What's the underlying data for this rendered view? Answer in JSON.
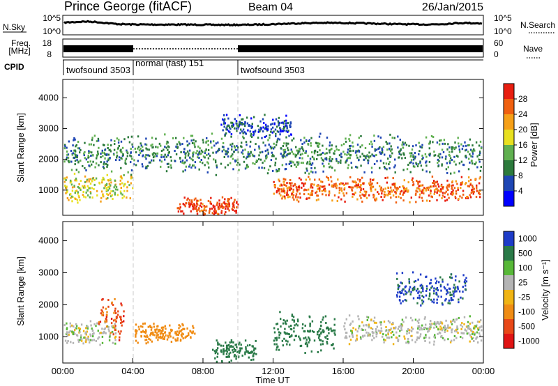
{
  "header": {
    "station": "Prince George (fitACF)",
    "beam": "Beam 04",
    "date": "26/Jan/2015"
  },
  "strip_labels": {
    "nsky": "N.Sky",
    "freq_line1": "Freq.",
    "freq_line2": "[MHz]",
    "cpid": "CPID",
    "nsearch": "N.Search",
    "nave": "Nave"
  },
  "strip_ticks": {
    "nsky_left_top": "10^5",
    "nsky_left_bottom": "10^0",
    "nsky_right_top": "10^5",
    "nsky_right_bottom": "10^0",
    "freq_top": "18",
    "freq_bottom": "8",
    "nave_top": "60",
    "nave_bottom": "0"
  },
  "cpid_segments": [
    {
      "label": "twofsound 3503",
      "start": "00:00",
      "end": "04:00"
    },
    {
      "label": "normal (fast) 151",
      "start": "04:00",
      "end": "10:00"
    },
    {
      "label": "twofsound 3503",
      "start": "10:00",
      "end": "24:00"
    }
  ],
  "colors": {
    "power_scale": [
      "#0000ff",
      "#1e46b4",
      "#2c7a3c",
      "#60b050",
      "#e8e020",
      "#f6a018",
      "#f06010",
      "#e81e10"
    ],
    "velocity_scale": [
      "#1e3cc8",
      "#2a7a48",
      "#58b838",
      "#b4b4b4",
      "#f0b414",
      "#f08c14",
      "#e84818",
      "#e01414"
    ]
  },
  "chart_data": [
    {
      "type": "heatmap",
      "title": "Power",
      "ylabel": "Slant Range [km]",
      "xlabel": "",
      "ylim": [
        180,
        4600
      ],
      "y_ticks": [
        "1000",
        "2000",
        "3000",
        "4000"
      ],
      "colorbar_label": "Power [dB]",
      "colorbar_ticks": [
        "4",
        "8",
        "12",
        "16",
        "20",
        "24",
        "28"
      ],
      "colorbar_range": [
        0,
        32
      ],
      "features": [
        {
          "t_start": 0.0,
          "t_end": 4.0,
          "range_center": 1100,
          "range_width": 500,
          "value_db": 18
        },
        {
          "t_start": 6.5,
          "t_end": 10.0,
          "range_center": 500,
          "range_width": 300,
          "value_db": 28
        },
        {
          "t_start": 12.0,
          "t_end": 24.0,
          "range_center": 1050,
          "range_width": 450,
          "value_db": 26
        },
        {
          "t_start": 0.0,
          "t_end": 24.0,
          "range_center": 2200,
          "range_width": 700,
          "value_db": 10
        },
        {
          "t_start": 9.0,
          "t_end": 13.0,
          "range_center": 3100,
          "range_width": 400,
          "value_db": 6
        }
      ]
    },
    {
      "type": "heatmap",
      "title": "Velocity",
      "ylabel": "Slant Range [km]",
      "xlabel": "Time UT",
      "ylim": [
        180,
        4600
      ],
      "y_ticks": [
        "1000",
        "2000",
        "3000",
        "4000"
      ],
      "x_ticks": [
        "00:00",
        "04:00",
        "08:00",
        "12:00",
        "16:00",
        "20:00",
        "00:00"
      ],
      "colorbar_label": "Velocity [m s⁻¹]",
      "colorbar_ticks": [
        "1000",
        "500",
        "100",
        "25",
        "-25",
        "-100",
        "-500",
        "-1000"
      ],
      "features": [
        {
          "t_start": 0.0,
          "t_end": 3.0,
          "range_center": 1150,
          "range_width": 400,
          "velocity": 0
        },
        {
          "t_start": 2.0,
          "t_end": 3.5,
          "range_center": 1600,
          "range_width": 700,
          "velocity": -700
        },
        {
          "t_start": 4.0,
          "t_end": 7.5,
          "range_center": 1150,
          "range_width": 350,
          "velocity": -300
        },
        {
          "t_start": 8.5,
          "t_end": 11.0,
          "range_center": 600,
          "range_width": 400,
          "velocity": 300
        },
        {
          "t_start": 12.0,
          "t_end": 15.5,
          "range_center": 1200,
          "range_width": 700,
          "velocity": 300
        },
        {
          "t_start": 16.0,
          "t_end": 24.0,
          "range_center": 1250,
          "range_width": 500,
          "velocity": 0
        },
        {
          "t_start": 19.0,
          "t_end": 23.0,
          "range_center": 2500,
          "range_width": 600,
          "velocity": 600
        }
      ]
    }
  ]
}
